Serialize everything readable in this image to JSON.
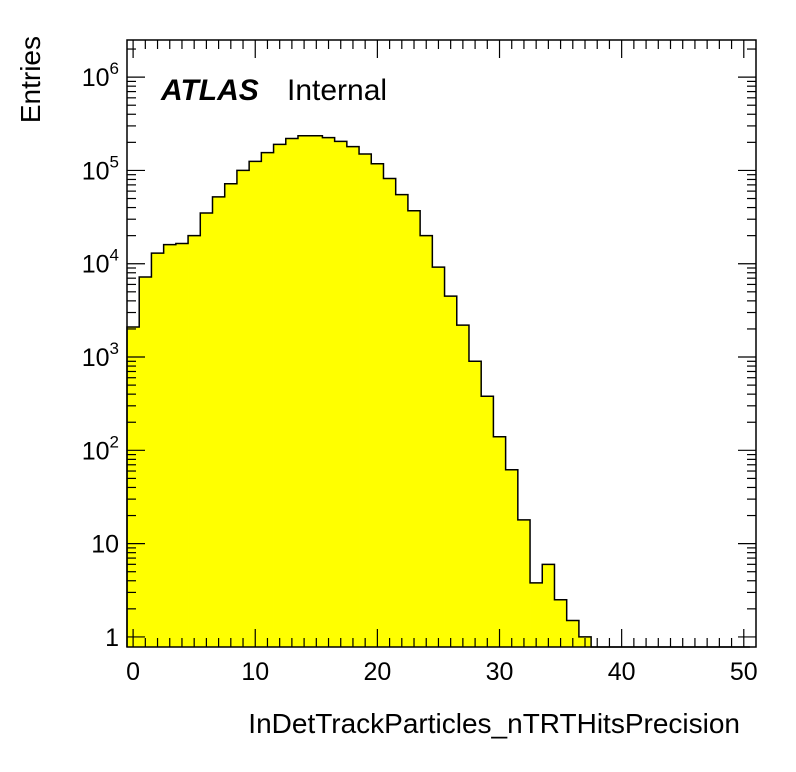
{
  "chart_data": {
    "type": "bar",
    "xlabel": "InDetTrackParticles_nTRTHitsPrecision",
    "ylabel": "Entries",
    "label_main": "ATLAS",
    "label_sub": "Internal",
    "xlim": [
      -0.5,
      51
    ],
    "ylim": [
      0.78,
      2500000
    ],
    "yscale": "log",
    "bin_width": 1,
    "bin_start": -0.5,
    "x_ticks": [
      0,
      10,
      20,
      30,
      40,
      50
    ],
    "x_tick_labels": [
      "0",
      "10",
      "20",
      "30",
      "40",
      "50"
    ],
    "y_ticks": [
      1,
      10,
      100,
      1000,
      10000,
      100000,
      1000000
    ],
    "y_tick_labels": [
      {
        "base": "1",
        "exp": ""
      },
      {
        "base": "10",
        "exp": ""
      },
      {
        "base": "10",
        "exp": "2"
      },
      {
        "base": "10",
        "exp": "3"
      },
      {
        "base": "10",
        "exp": "4"
      },
      {
        "base": "10",
        "exp": "5"
      },
      {
        "base": "10",
        "exp": "6"
      }
    ],
    "fill_color": "#ffff00",
    "line_color": "#000000",
    "values": [
      2100,
      7200,
      13000,
      16000,
      16500,
      20000,
      35000,
      52000,
      72000,
      100000,
      125000,
      155000,
      190000,
      220000,
      235000,
      235000,
      225000,
      205000,
      180000,
      150000,
      118000,
      82000,
      55000,
      37000,
      20000,
      9200,
      4500,
      2200,
      900,
      380,
      140,
      62,
      18,
      3.8,
      6,
      2.5,
      1.5,
      1,
      0,
      0,
      0,
      0,
      0,
      0,
      0,
      0,
      0,
      0,
      0,
      0,
      0
    ],
    "grid": false,
    "legend": "none"
  }
}
